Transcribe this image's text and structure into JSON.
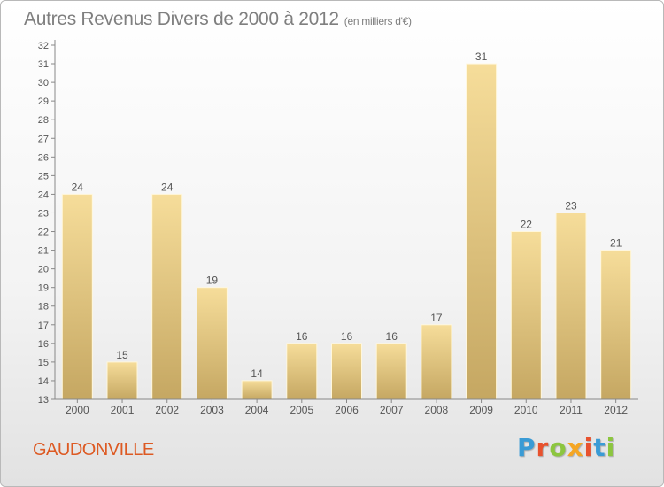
{
  "title": "Autres Revenus Divers de 2000 à 2012",
  "title_unit": "(en milliers d'€)",
  "commune": "GAUDONVILLE",
  "logo": {
    "text": "Proxiti",
    "colors": [
      "#3a9bd5",
      "#e8522e",
      "#8cc63f",
      "#f5a623",
      "#e8522e",
      "#3a9bd5",
      "#8cc63f"
    ]
  },
  "colors": {
    "bar_light": "#f6dd9a",
    "bar_dark": "#c5a762",
    "axis": "#888888",
    "grid": "#dcdcdc",
    "text": "#555555",
    "commune": "#dd5a23"
  },
  "chart_data": {
    "type": "bar",
    "categories": [
      "2000",
      "2001",
      "2002",
      "2003",
      "2004",
      "2005",
      "2006",
      "2007",
      "2008",
      "2009",
      "2010",
      "2011",
      "2012"
    ],
    "values": [
      24,
      15,
      24,
      19,
      14,
      16,
      16,
      16,
      17,
      31,
      22,
      23,
      21
    ],
    "ylim": [
      13,
      32
    ],
    "yticks": [
      13,
      14,
      15,
      16,
      17,
      18,
      19,
      20,
      21,
      22,
      23,
      24,
      25,
      26,
      27,
      28,
      29,
      30,
      31,
      32
    ],
    "xlabel": "",
    "ylabel": "",
    "grid": false,
    "data_labels": true
  }
}
